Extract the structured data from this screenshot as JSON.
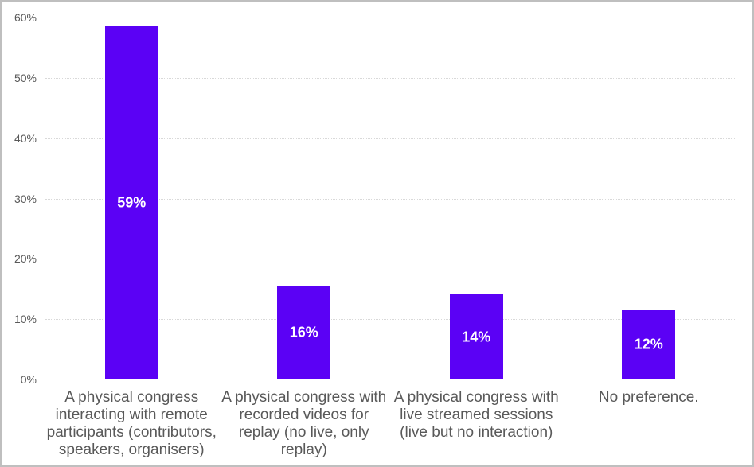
{
  "chart_data": {
    "type": "bar",
    "title": "",
    "xlabel": "",
    "ylabel": "",
    "categories": [
      "A physical congress\ninteracting with remote\nparticipants (contributors,\nspeakers, organisers)",
      "A physical congress with\nrecorded videos for\nreplay (no live, only\nreplay)",
      "A physical congress with\nlive streamed sessions\n(live but no interaction)",
      "No preference."
    ],
    "values": [
      59,
      16,
      14,
      12
    ],
    "value_labels": [
      "59%",
      "16%",
      "14%",
      "12%"
    ],
    "plotted_values": [
      58.6,
      15.6,
      14.1,
      11.5
    ],
    "ylim": [
      0,
      60
    ],
    "ytick_step": 10,
    "yticks": [
      "0%",
      "10%",
      "20%",
      "30%",
      "40%",
      "50%",
      "60%"
    ],
    "grid": "horizontal-dotted",
    "legend": "none",
    "colors": {
      "bar": "#5B01F5",
      "bar_value_text": "#FFFFFF",
      "axis_text": "#595959",
      "gridline": "#D9D9D9",
      "axis_line": "#C9C9C9",
      "frame_border": "#BFBFBF",
      "background": "#FFFFFF"
    }
  }
}
